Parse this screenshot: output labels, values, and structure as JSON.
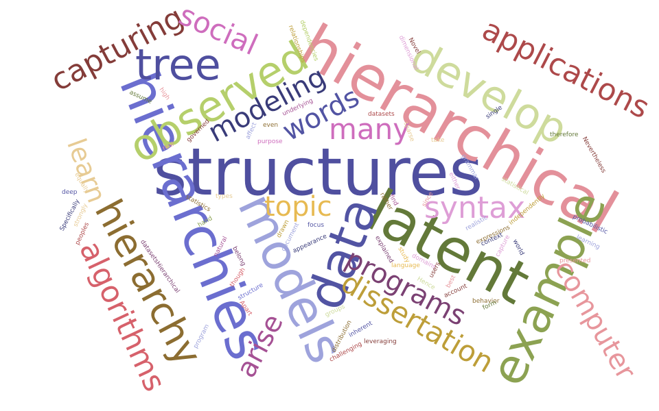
{
  "words": [
    {
      "text": "structures",
      "color": "#4f4f9f"
    },
    {
      "text": "hierarchical",
      "color": "#e3909a"
    },
    {
      "text": "hierarchies",
      "color": "#6b6ecf"
    },
    {
      "text": "models",
      "color": "#9ea3dc"
    },
    {
      "text": "latent",
      "color": "#637939"
    },
    {
      "text": "data",
      "color": "#5254a3"
    },
    {
      "text": "example",
      "color": "#8ca252"
    },
    {
      "text": "hierarchy",
      "color": "#8c6d31"
    },
    {
      "text": "observed",
      "color": "#b5cf6b"
    },
    {
      "text": "develop",
      "color": "#cedb9c"
    },
    {
      "text": "tree",
      "color": "#4f4f9f"
    },
    {
      "text": "capturing",
      "color": "#843c39"
    },
    {
      "text": "applications",
      "color": "#ad494a"
    },
    {
      "text": "algorithms",
      "color": "#d6616b"
    },
    {
      "text": "dissertation",
      "color": "#bd9e39"
    },
    {
      "text": "computer",
      "color": "#e7969c"
    },
    {
      "text": "programs",
      "color": "#7b4173"
    },
    {
      "text": "syntax",
      "color": "#de9ed6"
    },
    {
      "text": "many",
      "color": "#ce6dbd"
    },
    {
      "text": "modeling",
      "color": "#393b79"
    },
    {
      "text": "words",
      "color": "#5254a3"
    },
    {
      "text": "social",
      "color": "#ce6dbd"
    },
    {
      "text": "topic",
      "color": "#e7ba52"
    },
    {
      "text": "learn",
      "color": "#e7cb94"
    },
    {
      "text": "arise",
      "color": "#a55194"
    },
    {
      "text": "Novel",
      "color": "#843c39"
    },
    {
      "text": "dimensional",
      "color": "#de9ed6"
    },
    {
      "text": "relationships",
      "color": "#bd9e39"
    },
    {
      "text": "dependencies",
      "color": "#b5cf6b"
    },
    {
      "text": "assume",
      "color": "#637939"
    },
    {
      "text": "high",
      "color": "#e7969c"
    },
    {
      "text": "underlying",
      "color": "#a55194"
    },
    {
      "text": "even",
      "color": "#8c6d31"
    },
    {
      "text": "governed",
      "color": "#843c39"
    },
    {
      "text": "affect",
      "color": "#9ea3dc"
    },
    {
      "text": "purpose",
      "color": "#ce6dbd"
    },
    {
      "text": "real",
      "color": "#e7969c"
    },
    {
      "text": "datasets",
      "color": "#ad494a"
    },
    {
      "text": "sparse",
      "color": "#e7cb94"
    },
    {
      "text": "take",
      "color": "#e7cb94"
    },
    {
      "text": "single",
      "color": "#393b79"
    },
    {
      "text": "therefore",
      "color": "#637939"
    },
    {
      "text": "Nevertheless",
      "color": "#843c39"
    },
    {
      "text": "grammar",
      "color": "#9ea3dc"
    },
    {
      "text": "either",
      "color": "#de9ed6"
    },
    {
      "text": "statistical",
      "color": "#cedb9c"
    },
    {
      "text": "independently",
      "color": "#bd9e39"
    },
    {
      "text": "probabilistic",
      "color": "#5254a3"
    },
    {
      "text": "learning",
      "color": "#9ea3dc"
    },
    {
      "text": "presented",
      "color": "#e7969c"
    },
    {
      "text": "deep",
      "color": "#5254a3"
    },
    {
      "text": "equally",
      "color": "#e7cb94"
    },
    {
      "text": "strongly",
      "color": "#e7cb94"
    },
    {
      "text": "Specifically",
      "color": "#393b79"
    },
    {
      "text": "peoples",
      "color": "#ad494a"
    },
    {
      "text": "statistics",
      "color": "#8c6d31"
    },
    {
      "text": "types",
      "color": "#e7cb94"
    },
    {
      "text": "hand",
      "color": "#8ca252"
    },
    {
      "text": "focus",
      "color": "#5254a3"
    },
    {
      "text": "drawn",
      "color": "#bd9e39"
    },
    {
      "text": "document",
      "color": "#9ea3dc"
    },
    {
      "text": "appearance",
      "color": "#393b79"
    },
    {
      "text": "rather",
      "color": "#8c6d31"
    },
    {
      "text": "find",
      "color": "#a55194"
    },
    {
      "text": "since",
      "color": "#e7969c"
    },
    {
      "text": "realistic",
      "color": "#9ea3dc"
    },
    {
      "text": "expressions",
      "color": "#8c6d31"
    },
    {
      "text": "context",
      "color": "#393b79"
    },
    {
      "text": "capture",
      "color": "#de9ed6"
    },
    {
      "text": "world",
      "color": "#393b79"
    },
    {
      "text": "datasetsHierarchical",
      "color": "#7b4173"
    },
    {
      "text": "natural",
      "color": "#a55194"
    },
    {
      "text": "belong",
      "color": "#7b4173"
    },
    {
      "text": "though",
      "color": "#d6616b"
    },
    {
      "text": "structure",
      "color": "#6b6ecf"
    },
    {
      "text": "explained",
      "color": "#7b4173"
    },
    {
      "text": "study",
      "color": "#e7ba52"
    },
    {
      "text": "language",
      "color": "#e7ba52"
    },
    {
      "text": "domains",
      "color": "#de9ed6"
    },
    {
      "text": "users",
      "color": "#843c39"
    },
    {
      "text": "Hence",
      "color": "#cedb9c"
    },
    {
      "text": "best",
      "color": "#e7969c"
    },
    {
      "text": "account",
      "color": "#843c39"
    },
    {
      "text": "behavior",
      "color": "#8c6d31"
    },
    {
      "text": "form",
      "color": "#637939"
    },
    {
      "text": "Apart",
      "color": "#d6616b"
    },
    {
      "text": "program",
      "color": "#9ea3dc"
    },
    {
      "text": "groups",
      "color": "#cedb9c"
    },
    {
      "text": "distribution",
      "color": "#8c6d31"
    },
    {
      "text": "inherent",
      "color": "#5254a3"
    },
    {
      "text": "leveraging",
      "color": "#843c39"
    },
    {
      "text": "challenging",
      "color": "#ad494a"
    }
  ]
}
